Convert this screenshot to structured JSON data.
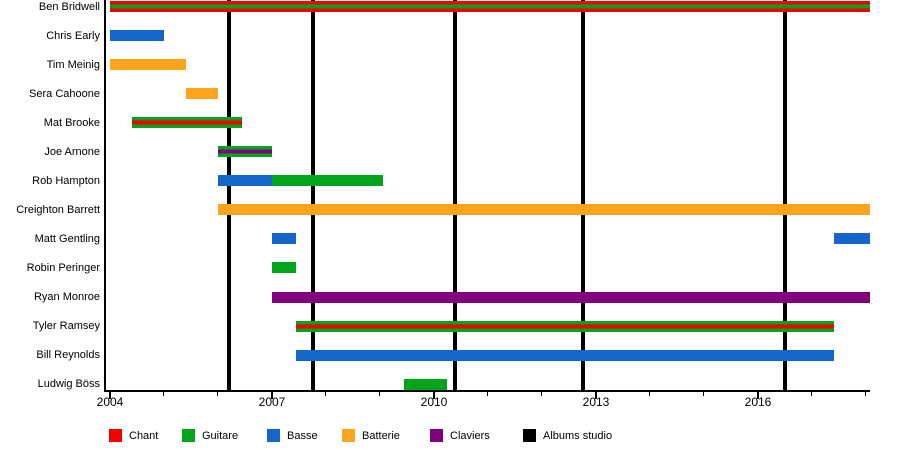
{
  "chart_data": {
    "type": "gantt-timeline",
    "title": "",
    "x_axis": {
      "start": 2004,
      "end": 2018.07,
      "minor_tick_interval": 1,
      "labeled_ticks": [
        2004,
        2007,
        2010,
        2013,
        2016
      ],
      "grid": false
    },
    "role_colors": {
      "Chant": "#f40000",
      "Guitare": "#00a41b",
      "Basse": "#1467c8",
      "Batterie": "#ffa41c",
      "Claviers": "#800080",
      "Albums studio": "#000000"
    },
    "albums_studio_lines_years": [
      2006.2,
      2007.76,
      2010.39,
      2012.76,
      2016.5
    ],
    "members": [
      {
        "name": "Ben Bridwell",
        "bars": [
          {
            "start": 2004.0,
            "end": 2018.07,
            "roles": [
              "Chant",
              "Guitare"
            ]
          }
        ]
      },
      {
        "name": "Chris Early",
        "bars": [
          {
            "start": 2004.0,
            "end": 2005.0,
            "roles": [
              "Basse"
            ]
          }
        ]
      },
      {
        "name": "Tim Meinig",
        "bars": [
          {
            "start": 2004.0,
            "end": 2005.4,
            "roles": [
              "Batterie"
            ]
          }
        ]
      },
      {
        "name": "Sera Cahoone",
        "bars": [
          {
            "start": 2005.4,
            "end": 2006.0,
            "roles": [
              "Batterie"
            ]
          }
        ]
      },
      {
        "name": "Mat Brooke",
        "bars": [
          {
            "start": 2004.4,
            "end": 2006.45,
            "roles": [
              "Guitare",
              "Chant"
            ]
          }
        ]
      },
      {
        "name": "Joe Arnone",
        "bars": [
          {
            "start": 2006.0,
            "end": 2007.0,
            "roles": [
              "Guitare",
              "Claviers"
            ]
          }
        ]
      },
      {
        "name": "Rob Hampton",
        "bars": [
          {
            "start": 2006.0,
            "end": 2007.0,
            "roles": [
              "Basse"
            ]
          },
          {
            "start": 2007.0,
            "end": 2009.05,
            "roles": [
              "Guitare"
            ]
          }
        ]
      },
      {
        "name": "Creighton Barrett",
        "bars": [
          {
            "start": 2006.0,
            "end": 2018.07,
            "roles": [
              "Batterie"
            ]
          }
        ]
      },
      {
        "name": "Matt Gentling",
        "bars": [
          {
            "start": 2007.0,
            "end": 2007.45,
            "roles": [
              "Basse"
            ]
          },
          {
            "start": 2017.4,
            "end": 2018.07,
            "roles": [
              "Basse"
            ]
          }
        ]
      },
      {
        "name": "Robin Peringer",
        "bars": [
          {
            "start": 2007.0,
            "end": 2007.45,
            "roles": [
              "Guitare"
            ]
          }
        ]
      },
      {
        "name": "Ryan Monroe",
        "bars": [
          {
            "start": 2007.0,
            "end": 2018.07,
            "roles": [
              "Claviers"
            ]
          }
        ]
      },
      {
        "name": "Tyler Ramsey",
        "bars": [
          {
            "start": 2007.45,
            "end": 2017.4,
            "roles": [
              "Guitare",
              "Chant"
            ]
          }
        ]
      },
      {
        "name": "Bill Reynolds",
        "bars": [
          {
            "start": 2007.45,
            "end": 2017.4,
            "roles": [
              "Basse"
            ]
          }
        ]
      },
      {
        "name": "Ludwig Böss",
        "bars": [
          {
            "start": 2009.45,
            "end": 2010.25,
            "roles": [
              "Guitare"
            ]
          }
        ]
      }
    ],
    "legend": [
      {
        "label": "Chant"
      },
      {
        "label": "Guitare"
      },
      {
        "label": "Basse"
      },
      {
        "label": "Batterie"
      },
      {
        "label": "Claviers"
      },
      {
        "label": "Albums studio"
      }
    ]
  }
}
